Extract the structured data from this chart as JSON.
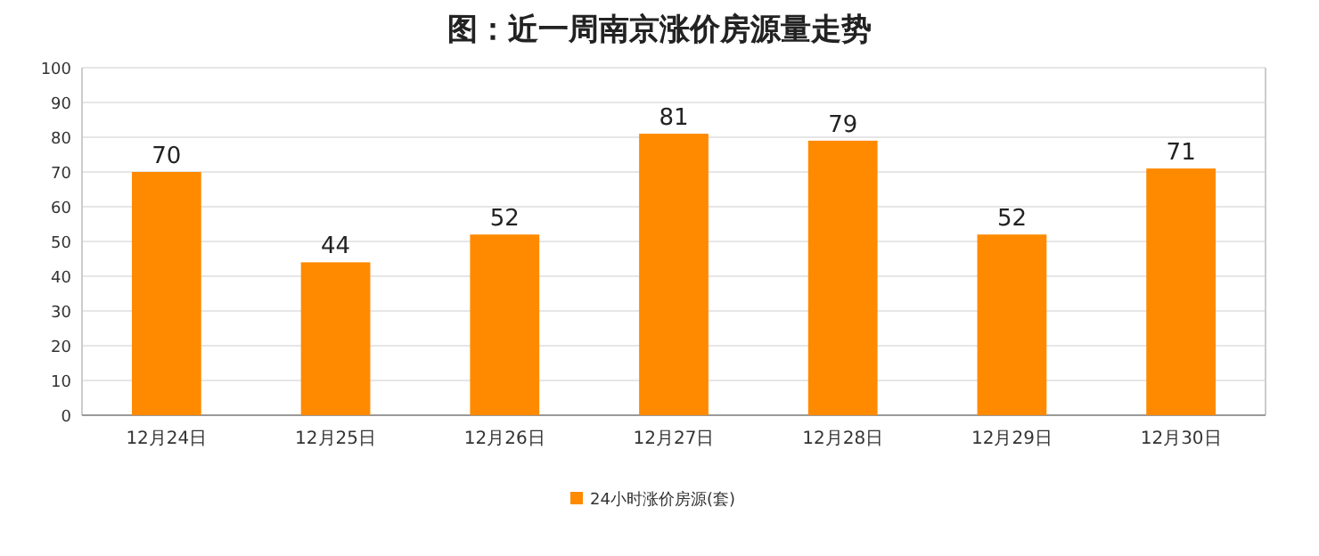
{
  "chart_data": {
    "type": "bar",
    "title": "图：近一周南京涨价房源量走势",
    "categories": [
      "12月24日",
      "12月25日",
      "12月26日",
      "12月27日",
      "12月28日",
      "12月29日",
      "12月30日"
    ],
    "series": [
      {
        "name": "24小时涨价房源(套)",
        "color": "#ff8a00",
        "values": [
          70,
          44,
          52,
          81,
          79,
          52,
          71
        ]
      }
    ],
    "ylim": [
      0,
      100
    ],
    "yticks": [
      0,
      10,
      20,
      30,
      40,
      50,
      60,
      70,
      80,
      90,
      100
    ],
    "grid": "y",
    "legend": "bottom",
    "data_labels": true
  }
}
